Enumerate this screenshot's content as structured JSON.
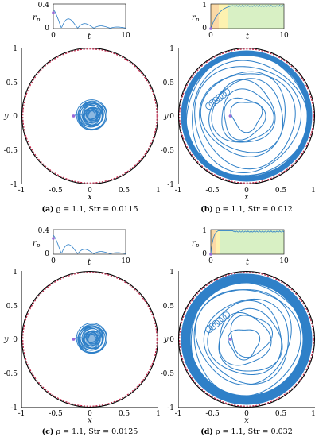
{
  "colors": {
    "trajectory": "#2f80c8",
    "dashed_boundary": "#c0143c",
    "solid_boundary": "#000000",
    "marker": "#9a6ad8",
    "band_orange": "#fbd9a6",
    "band_yellow": "#fdf2b0",
    "band_green": "#d8f0c4"
  },
  "ticks": {
    "inset_y": [
      "0.4",
      "0",
      "1",
      "0"
    ],
    "inset_x": [
      "0",
      "10"
    ],
    "main_y": [
      "1",
      "0.5",
      "0",
      "-0.5",
      "-1"
    ],
    "main_x": [
      "-1",
      "-0.5",
      "0",
      "0.5",
      "1"
    ]
  },
  "labels": {
    "inset_y": "r",
    "inset_y_sub": "p",
    "inset_x": "t",
    "main_x": "x",
    "main_y": "y"
  },
  "panels": [
    {
      "id": "a",
      "letter": "(a)",
      "text": "ϱ = 1.1, Str = 0.0115",
      "type": "small",
      "stroke_w": 0.9,
      "ring": 0.05
    },
    {
      "id": "b",
      "letter": "(b)",
      "text": "ϱ = 1.1, Str = 0.012",
      "type": "large",
      "stroke_w": 1.1,
      "ring": 0.08
    },
    {
      "id": "c",
      "letter": "(c)",
      "text": "ϱ = 1.1, Str = 0.0125",
      "type": "small",
      "stroke_w": 0.9,
      "ring": 0.05
    },
    {
      "id": "d",
      "letter": "(d)",
      "text": "ϱ = 1.1, Str = 0.032",
      "type": "large",
      "stroke_w": 1.1,
      "ring": 0.14
    }
  ]
}
